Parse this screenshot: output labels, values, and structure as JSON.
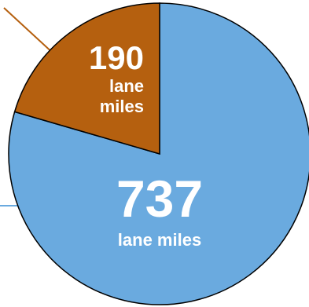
{
  "chart_data": {
    "type": "pie",
    "slices": [
      {
        "value": 737,
        "value_label": "737",
        "unit_label": "lane miles",
        "color": "#6AAADF"
      },
      {
        "value": 190,
        "value_label": "190",
        "unit_label": "lane\nmiles",
        "color": "#B5600F"
      }
    ],
    "leader_colors": [
      "#6AAADF",
      "#B5600F"
    ],
    "outline_color": "#000000"
  }
}
